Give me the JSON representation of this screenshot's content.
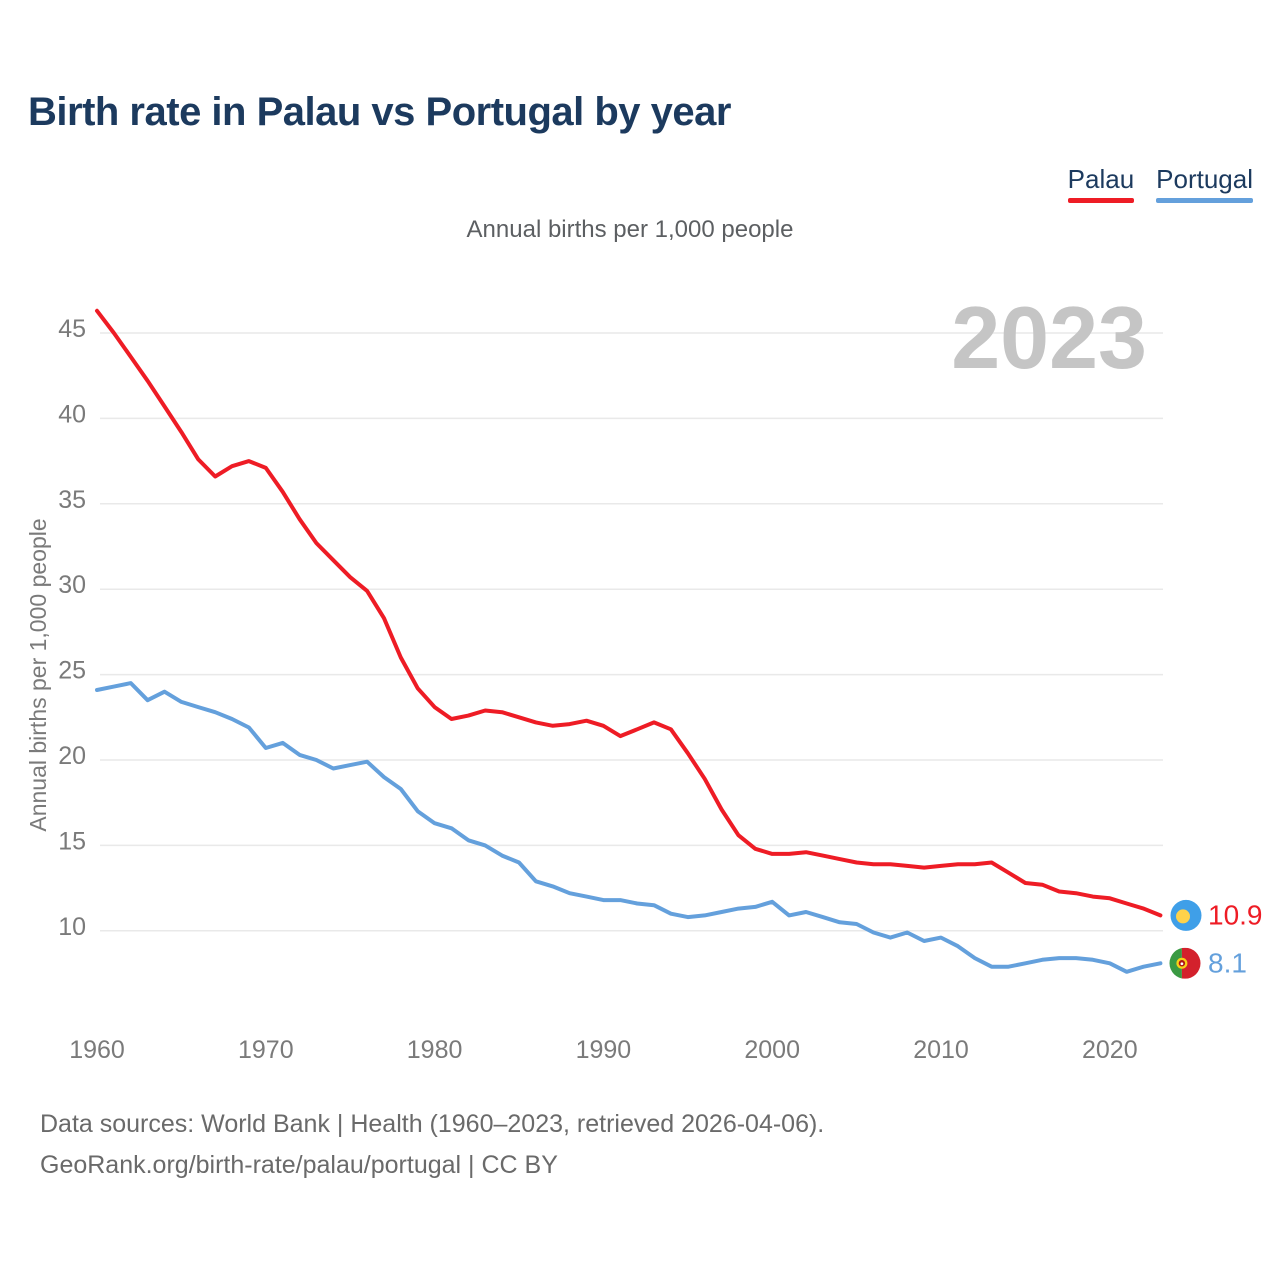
{
  "title": "Birth rate in Palau vs Portugal by year",
  "subtitle": "Annual births per 1,000 people",
  "watermark_year": "2023",
  "legend": {
    "items": [
      {
        "label": "Palau",
        "color": "#ee1c25"
      },
      {
        "label": "Portugal",
        "color": "#64a0dc"
      }
    ]
  },
  "end_labels": [
    {
      "series": "Palau",
      "value": "10.9",
      "color": "#ee1c25",
      "flag": "palau-flag"
    },
    {
      "series": "Portugal",
      "value": "8.1",
      "color": "#64a0dc",
      "flag": "portugal-flag"
    }
  ],
  "flag_colors": {
    "palau": {
      "field": "#3f9fe8",
      "disc": "#ffd24a"
    },
    "portugal": {
      "green": "#3a9a43",
      "red": "#d3212c",
      "emblem_ring": "#f7d117",
      "emblem_inner": "#ffffff",
      "emblem_dot": "#b01515"
    }
  },
  "footer": {
    "line1": "Data sources: World Bank | Health (1960–2023, retrieved 2026-04-06).",
    "line2": "GeoRank.org/birth-rate/palau/portugal | CC BY"
  },
  "chart_data": {
    "type": "line",
    "title": "Birth rate in Palau vs Portugal by year",
    "subtitle": "Annual births per 1,000 people",
    "ylabel": "Annual births per 1,000 people",
    "xlabel": "",
    "grid": "horizontal",
    "legend_position": "top-right",
    "ylim": [
      7,
      47
    ],
    "yticks": [
      10,
      15,
      20,
      25,
      30,
      35,
      40,
      45
    ],
    "xticks": [
      1960,
      1970,
      1980,
      1990,
      2000,
      2010,
      2020
    ],
    "years": [
      1960,
      1961,
      1962,
      1963,
      1964,
      1965,
      1966,
      1967,
      1968,
      1969,
      1970,
      1971,
      1972,
      1973,
      1974,
      1975,
      1976,
      1977,
      1978,
      1979,
      1980,
      1981,
      1982,
      1983,
      1984,
      1985,
      1986,
      1987,
      1988,
      1989,
      1990,
      1991,
      1992,
      1993,
      1994,
      1995,
      1996,
      1997,
      1998,
      1999,
      2000,
      2001,
      2002,
      2003,
      2004,
      2005,
      2006,
      2007,
      2008,
      2009,
      2010,
      2011,
      2012,
      2013,
      2014,
      2015,
      2016,
      2017,
      2018,
      2019,
      2020,
      2021,
      2022,
      2023
    ],
    "series": [
      {
        "name": "Palau",
        "color": "#ee1c25",
        "end_value_label": "10.9",
        "values": [
          46.3,
          45.0,
          43.6,
          42.2,
          40.7,
          39.2,
          37.6,
          36.6,
          37.2,
          37.5,
          37.1,
          35.7,
          34.1,
          32.7,
          31.7,
          30.7,
          29.9,
          28.3,
          26.0,
          24.2,
          23.1,
          22.4,
          22.6,
          22.9,
          22.8,
          22.5,
          22.2,
          22.0,
          22.1,
          22.3,
          22.0,
          21.4,
          21.8,
          22.2,
          21.8,
          20.4,
          18.9,
          17.1,
          15.6,
          14.8,
          14.5,
          14.5,
          14.6,
          14.4,
          14.2,
          14.0,
          13.9,
          13.9,
          13.8,
          13.7,
          13.8,
          13.9,
          13.9,
          14.0,
          13.4,
          12.8,
          12.7,
          12.3,
          12.2,
          12.0,
          11.9,
          11.6,
          11.3,
          10.9
        ]
      },
      {
        "name": "Portugal",
        "color": "#64a0dc",
        "end_value_label": "8.1",
        "values": [
          24.1,
          24.3,
          24.5,
          23.5,
          24.0,
          23.4,
          23.1,
          22.8,
          22.4,
          21.9,
          20.7,
          21.0,
          20.3,
          20.0,
          19.5,
          19.7,
          19.9,
          19.0,
          18.3,
          17.0,
          16.3,
          16.0,
          15.3,
          15.0,
          14.4,
          14.0,
          12.9,
          12.6,
          12.2,
          12.0,
          11.8,
          11.8,
          11.6,
          11.5,
          11.0,
          10.8,
          10.9,
          11.1,
          11.3,
          11.4,
          11.7,
          10.9,
          11.1,
          10.8,
          10.5,
          10.4,
          9.9,
          9.6,
          9.9,
          9.4,
          9.6,
          9.1,
          8.4,
          7.9,
          7.9,
          8.1,
          8.3,
          8.4,
          8.4,
          8.3,
          8.1,
          7.6,
          7.9,
          8.1
        ]
      }
    ]
  },
  "style_colors": {
    "title": "#1c3a5e",
    "axis_text": "#7a7a7a",
    "gridline": "#e9e9e9",
    "watermark": "#c5c5c5",
    "subtitle": "#5c5f62",
    "footer": "#6a6a6a"
  }
}
